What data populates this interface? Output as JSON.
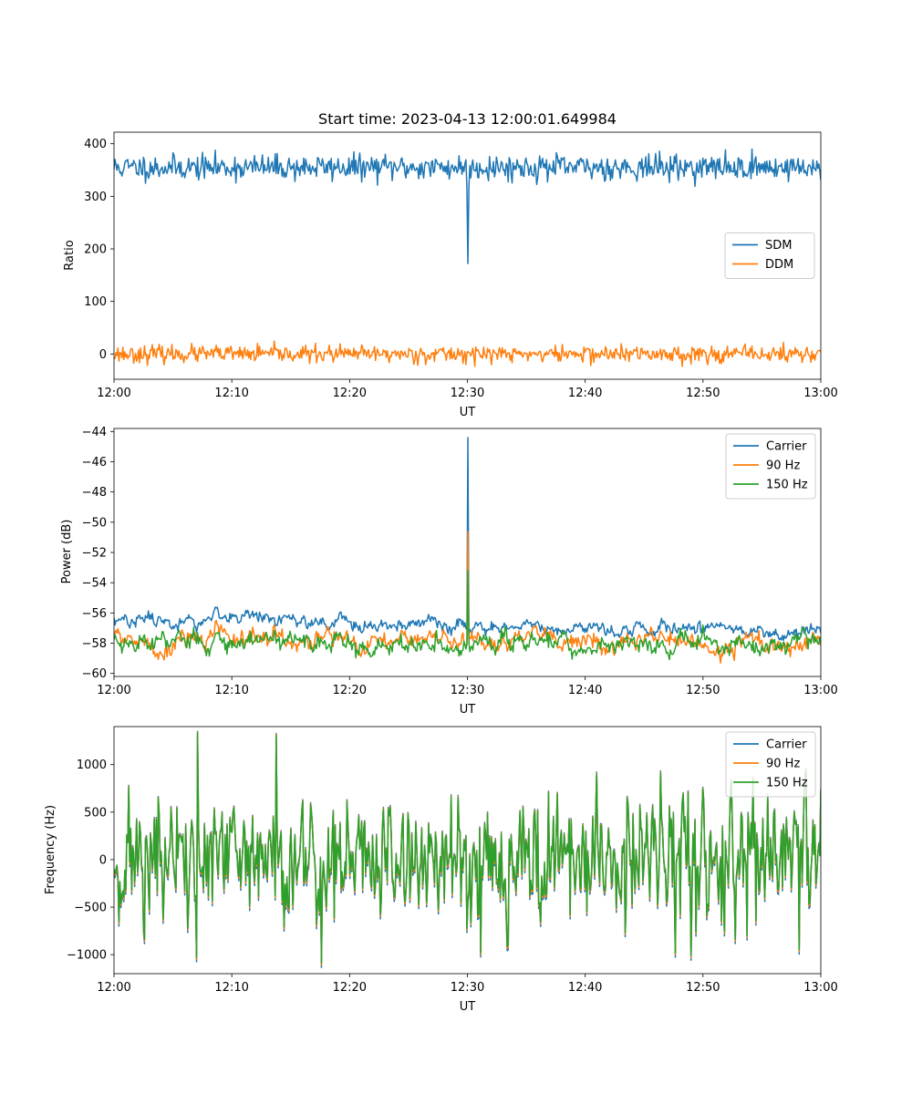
{
  "chart_data": [
    {
      "type": "line",
      "title": "Start time: 2023-04-13 12:00:01.649984",
      "xlabel": "UT",
      "ylabel": "Ratio",
      "x_ticks": [
        "12:00",
        "12:10",
        "12:20",
        "12:30",
        "12:40",
        "12:50",
        "13:00"
      ],
      "xlim_minutes": [
        0,
        60
      ],
      "ylim": [
        -48,
        422
      ],
      "y_ticks": [
        0,
        100,
        200,
        300,
        400
      ],
      "legend": {
        "placement": "center-right"
      },
      "series": [
        {
          "name": "SDM",
          "color": "#1f77b4",
          "mean": 355,
          "noise": 12,
          "spike": {
            "x_minute": 30.0,
            "value": 172
          },
          "seed": 11
        },
        {
          "name": "DDM",
          "color": "#ff7f0e",
          "mean": 0,
          "noise": 8,
          "seed": 23
        }
      ]
    },
    {
      "type": "line",
      "title": "",
      "xlabel": "UT",
      "ylabel": "Power (dB)",
      "x_ticks": [
        "12:00",
        "12:10",
        "12:20",
        "12:30",
        "12:40",
        "12:50",
        "13:00"
      ],
      "xlim_minutes": [
        0,
        60
      ],
      "ylim": [
        -60.2,
        -43.8
      ],
      "y_ticks": [
        -60,
        -58,
        -56,
        -54,
        -52,
        -50,
        -48,
        -46,
        -44
      ],
      "y_tick_labels": [
        "−60",
        "−58",
        "−56",
        "−54",
        "−52",
        "−50",
        "−48",
        "−46",
        "−44"
      ],
      "legend": {
        "placement": "top-right"
      },
      "series": [
        {
          "name": "Carrier",
          "color": "#1f77b4",
          "start": -56.4,
          "end": -57.2,
          "noise": 0.25,
          "spike": {
            "x_minute": 30.0,
            "value": -44.4
          },
          "seed": 37
        },
        {
          "name": "90 Hz",
          "color": "#ff7f0e",
          "start": -57.7,
          "end": -58.0,
          "noise": 0.35,
          "spike": {
            "x_minute": 30.0,
            "value": -50.6
          },
          "seed": 41
        },
        {
          "name": "150 Hz",
          "color": "#2ca02c",
          "start": -57.8,
          "end": -58.1,
          "noise": 0.38,
          "spike": {
            "x_minute": 30.0,
            "value": -53.2
          },
          "seed": 53
        }
      ]
    },
    {
      "type": "line",
      "title": "",
      "xlabel": "UT",
      "ylabel": "Frequency (Hz)",
      "x_ticks": [
        "12:00",
        "12:10",
        "12:20",
        "12:30",
        "12:40",
        "12:50",
        "13:00"
      ],
      "xlim_minutes": [
        0,
        60
      ],
      "ylim": [
        -1200,
        1400
      ],
      "y_ticks": [
        -1000,
        -500,
        0,
        500,
        1000
      ],
      "y_tick_labels": [
        "−1000",
        "−500",
        "0",
        "500",
        "1000"
      ],
      "legend": {
        "placement": "top-right"
      },
      "base_noise": 380,
      "series": [
        {
          "name": "Carrier",
          "color": "#1f77b4",
          "offset": -45
        },
        {
          "name": "90 Hz",
          "color": "#ff7f0e",
          "offset": -20
        },
        {
          "name": "150 Hz",
          "color": "#2ca02c",
          "offset": 0
        }
      ],
      "peaks": [
        {
          "x_minute": 7.1,
          "value": 1330
        },
        {
          "x_minute": 13.8,
          "value": 1310
        },
        {
          "x_minute": 17.6,
          "value": -1090
        },
        {
          "x_minute": 7.0,
          "value": -1030
        },
        {
          "x_minute": 31.1,
          "value": -980
        },
        {
          "x_minute": 58.2,
          "value": -950
        }
      ],
      "seed": 71
    }
  ]
}
